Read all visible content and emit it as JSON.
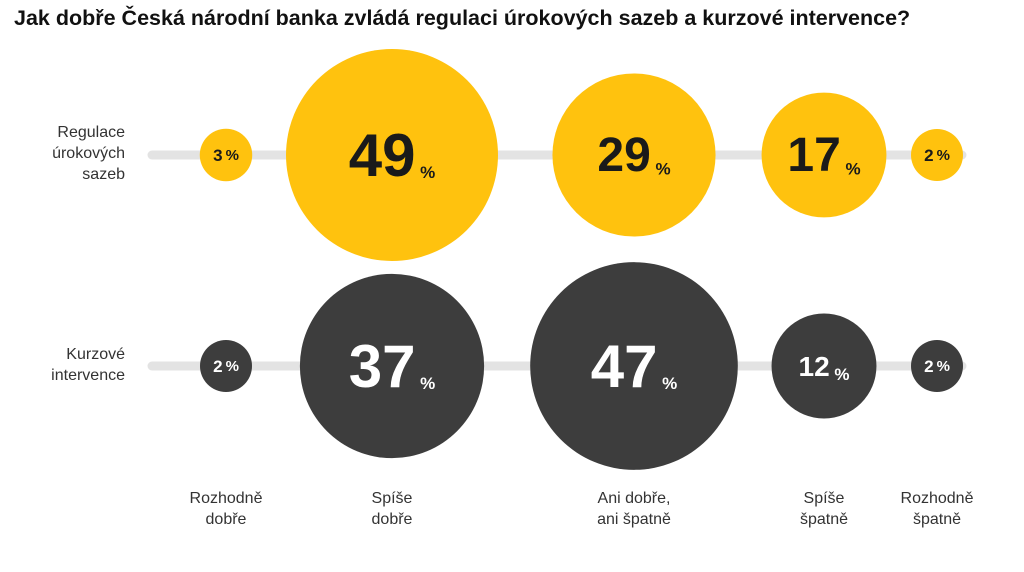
{
  "title": "Jak dobře Česká národní banka zvládá regulaci úrokových sazeb a kurzové intervence?",
  "chart_data": {
    "type": "bubble",
    "categories": [
      [
        "Rozhodně",
        "dobře"
      ],
      [
        "Spíše",
        "dobře"
      ],
      [
        "Ani dobře,",
        "ani špatně"
      ],
      [
        "Spíše",
        "špatně"
      ],
      [
        "Rozhodně",
        "špatně"
      ]
    ],
    "unit": "%",
    "series": [
      {
        "label_lines": [
          "Regulace",
          "úrokových",
          "sazeb"
        ],
        "color": "#FFC20E",
        "text_color": "#1a1a1a",
        "values": [
          3,
          49,
          29,
          17,
          2
        ]
      },
      {
        "label_lines": [
          "Kurzové",
          "intervence"
        ],
        "color": "#3d3d3d",
        "text_color": "#ffffff",
        "values": [
          2,
          37,
          47,
          12,
          2
        ]
      }
    ]
  },
  "colors": {
    "track": "#e3e3e3"
  }
}
